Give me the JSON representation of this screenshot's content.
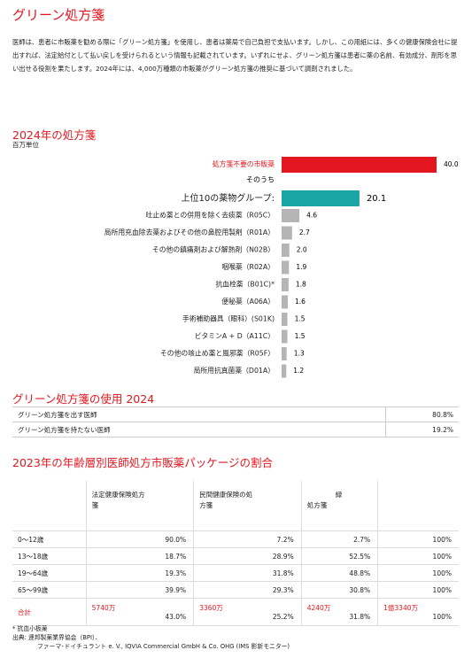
{
  "header": {
    "title": "グリーン処方箋",
    "paragraph": "医師は、患者に市販薬を勧める際に「グリーン処方箋」を使用し、患者は薬局で自己負担で支払います。しかし、この用紙には、多くの健康保険会社に提出すれば、法定給付として払い戻しを受けられるという情報も記載されています。いずれにせよ、グリーン処方箋は患者に薬の名前、有効成分、剤形を思い出せる役割を果たします。2024年には、4,000万種類の市販薬がグリーン処方箋の推奨に基づいて調剤されました。"
  },
  "chart_data": {
    "type": "bar",
    "title": "2024年の処方箋",
    "subtitle": "百万単位",
    "annotation": "そのうち",
    "categories": [
      "処方箋不要の市販薬",
      "上位10の薬物グループ:",
      "吐止め薬との併用を除く去痰薬（R05C）",
      "局所用充血除去薬およびその他の鼻腔用製剤（R01A）",
      "その他の鎮痛剤および解熱剤（N02B）",
      "咽喉薬（R02A）",
      "抗血栓薬（B01C)*",
      "便秘薬（A06A）",
      "手術補助器具（眼科）(S01K)",
      "ビタミンA + D（A11C）",
      "その他の咳止め薬と風邪薬（R05F）",
      "局所用抗真菌薬（D01A）"
    ],
    "values": [
      40.0,
      20.1,
      4.6,
      2.7,
      2.0,
      1.9,
      1.8,
      1.6,
      1.5,
      1.5,
      1.3,
      1.2
    ],
    "value_labels": [
      "40.0",
      "20.1",
      "4.6",
      "2.7",
      "2.0",
      "1.9",
      "1.8",
      "1.6",
      "1.5",
      "1.5",
      "1.3",
      "1.2"
    ],
    "colors": [
      "#e3161f",
      "#1aa5a5",
      "#b5b5b5",
      "#b5b5b5",
      "#b5b5b5",
      "#b5b5b5",
      "#b5b5b5",
      "#b5b5b5",
      "#b5b5b5",
      "#b5b5b5",
      "#b5b5b5",
      "#b5b5b5"
    ],
    "xlim": [
      0,
      40
    ]
  },
  "usage_table": {
    "title": "グリーン処方箋の使用 2024",
    "rows": [
      [
        "グリーン処方箋を出す医師",
        "80.8%"
      ],
      [
        "グリーン処方箋を持たない医師",
        "19.2%"
      ]
    ]
  },
  "age_table": {
    "title": "2023年の年齢層別医師処方市販薬パッケージの割合",
    "headers": [
      [
        "法定健康保険処方",
        "箋"
      ],
      [
        "民間健康保険の処",
        "方箋"
      ],
      [
        "緑",
        "処方箋"
      ]
    ],
    "rows": [
      [
        "0～12歳",
        "90.0%",
        "7.2%",
        "2.7%",
        "100%"
      ],
      [
        "13～18歳",
        "18.7%",
        "28.9%",
        "52.5%",
        "100%"
      ],
      [
        "19～64歳",
        "19.3%",
        "31.8%",
        "48.8%",
        "100%"
      ],
      [
        "65～99歳",
        "39.9%",
        "29.3%",
        "30.8%",
        "100%"
      ]
    ],
    "total_label": "合計",
    "totals": [
      [
        "5740万",
        "43.0%"
      ],
      [
        "3360万",
        "25.2%"
      ],
      [
        "4240万",
        "31.8%"
      ],
      [
        "1億3340万",
        "100%"
      ]
    ]
  },
  "footnotes": [
    "* 抗血小板薬",
    "出典: 連邦製薬業界協会（BPI）、",
    "ファーマ･ドイチュラント e. V., IQVIA Commercial GmbH & Co. OHG (IMS 影新モニター)"
  ]
}
